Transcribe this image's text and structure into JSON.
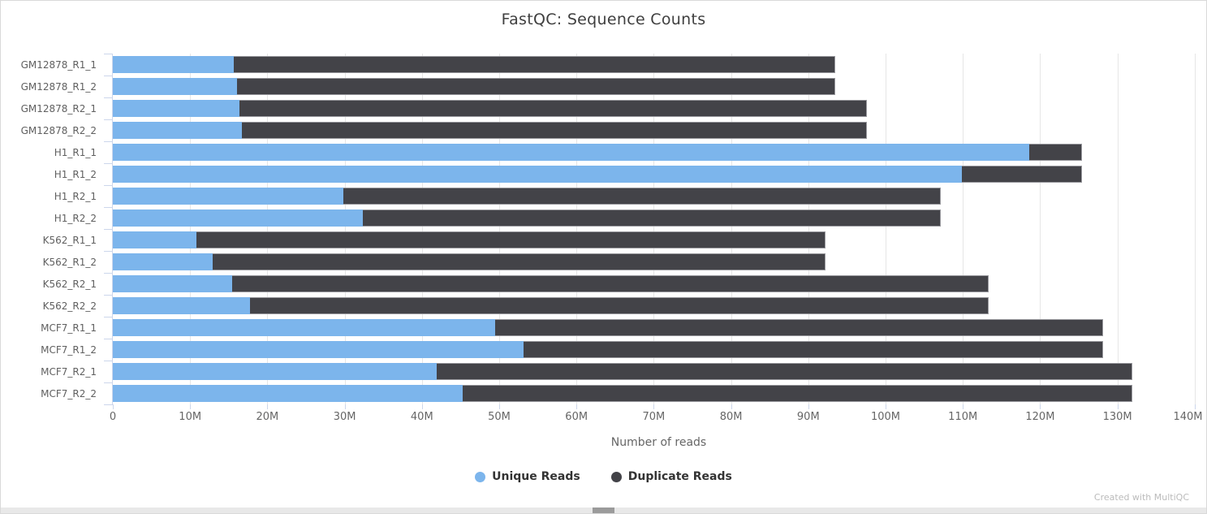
{
  "chart_data": {
    "type": "bar",
    "orientation": "horizontal",
    "stacked": true,
    "title": "FastQC: Sequence Counts",
    "xlabel": "Number of reads",
    "categories": [
      "GM12878_R1_1",
      "GM12878_R1_2",
      "GM12878_R2_1",
      "GM12878_R2_2",
      "H1_R1_1",
      "H1_R1_2",
      "H1_R2_1",
      "H1_R2_2",
      "K562_R1_1",
      "K562_R1_2",
      "K562_R2_1",
      "K562_R2_2",
      "MCF7_R1_1",
      "MCF7_R1_2",
      "MCF7_R2_1",
      "MCF7_R2_2"
    ],
    "series": [
      {
        "name": "Unique Reads",
        "color": "#7cb5ec",
        "values_millions": [
          15.7,
          16.1,
          16.4,
          16.7,
          118.6,
          109.9,
          29.8,
          32.4,
          10.8,
          12.9,
          15.4,
          17.8,
          49.5,
          53.2,
          41.9,
          45.3
        ]
      },
      {
        "name": "Duplicate Reads",
        "color": "#434348",
        "values_millions": [
          77.8,
          77.4,
          81.2,
          80.9,
          6.8,
          15.5,
          77.3,
          74.7,
          81.4,
          79.3,
          97.9,
          95.5,
          78.6,
          74.9,
          90.0,
          86.6
        ]
      }
    ],
    "totals_millions": [
      93.5,
      93.5,
      97.6,
      97.6,
      125.4,
      125.4,
      107.1,
      107.1,
      92.2,
      92.2,
      113.3,
      113.3,
      128.1,
      128.1,
      131.9,
      131.9
    ],
    "xlim_reads": [
      0,
      140000000
    ],
    "xticks": [
      "0",
      "10M",
      "20M",
      "30M",
      "40M",
      "50M",
      "60M",
      "70M",
      "80M",
      "90M",
      "100M",
      "110M",
      "120M",
      "130M",
      "140M"
    ],
    "grid": "vertical-only",
    "legend_position": "bottom-center",
    "colors": {
      "gridline": "#e6e6e6",
      "axis": "#ccd6eb",
      "tick_label": "#666666",
      "title": "#3f3f3f"
    }
  },
  "footer": {
    "watermark": "Created with MultiQC"
  }
}
